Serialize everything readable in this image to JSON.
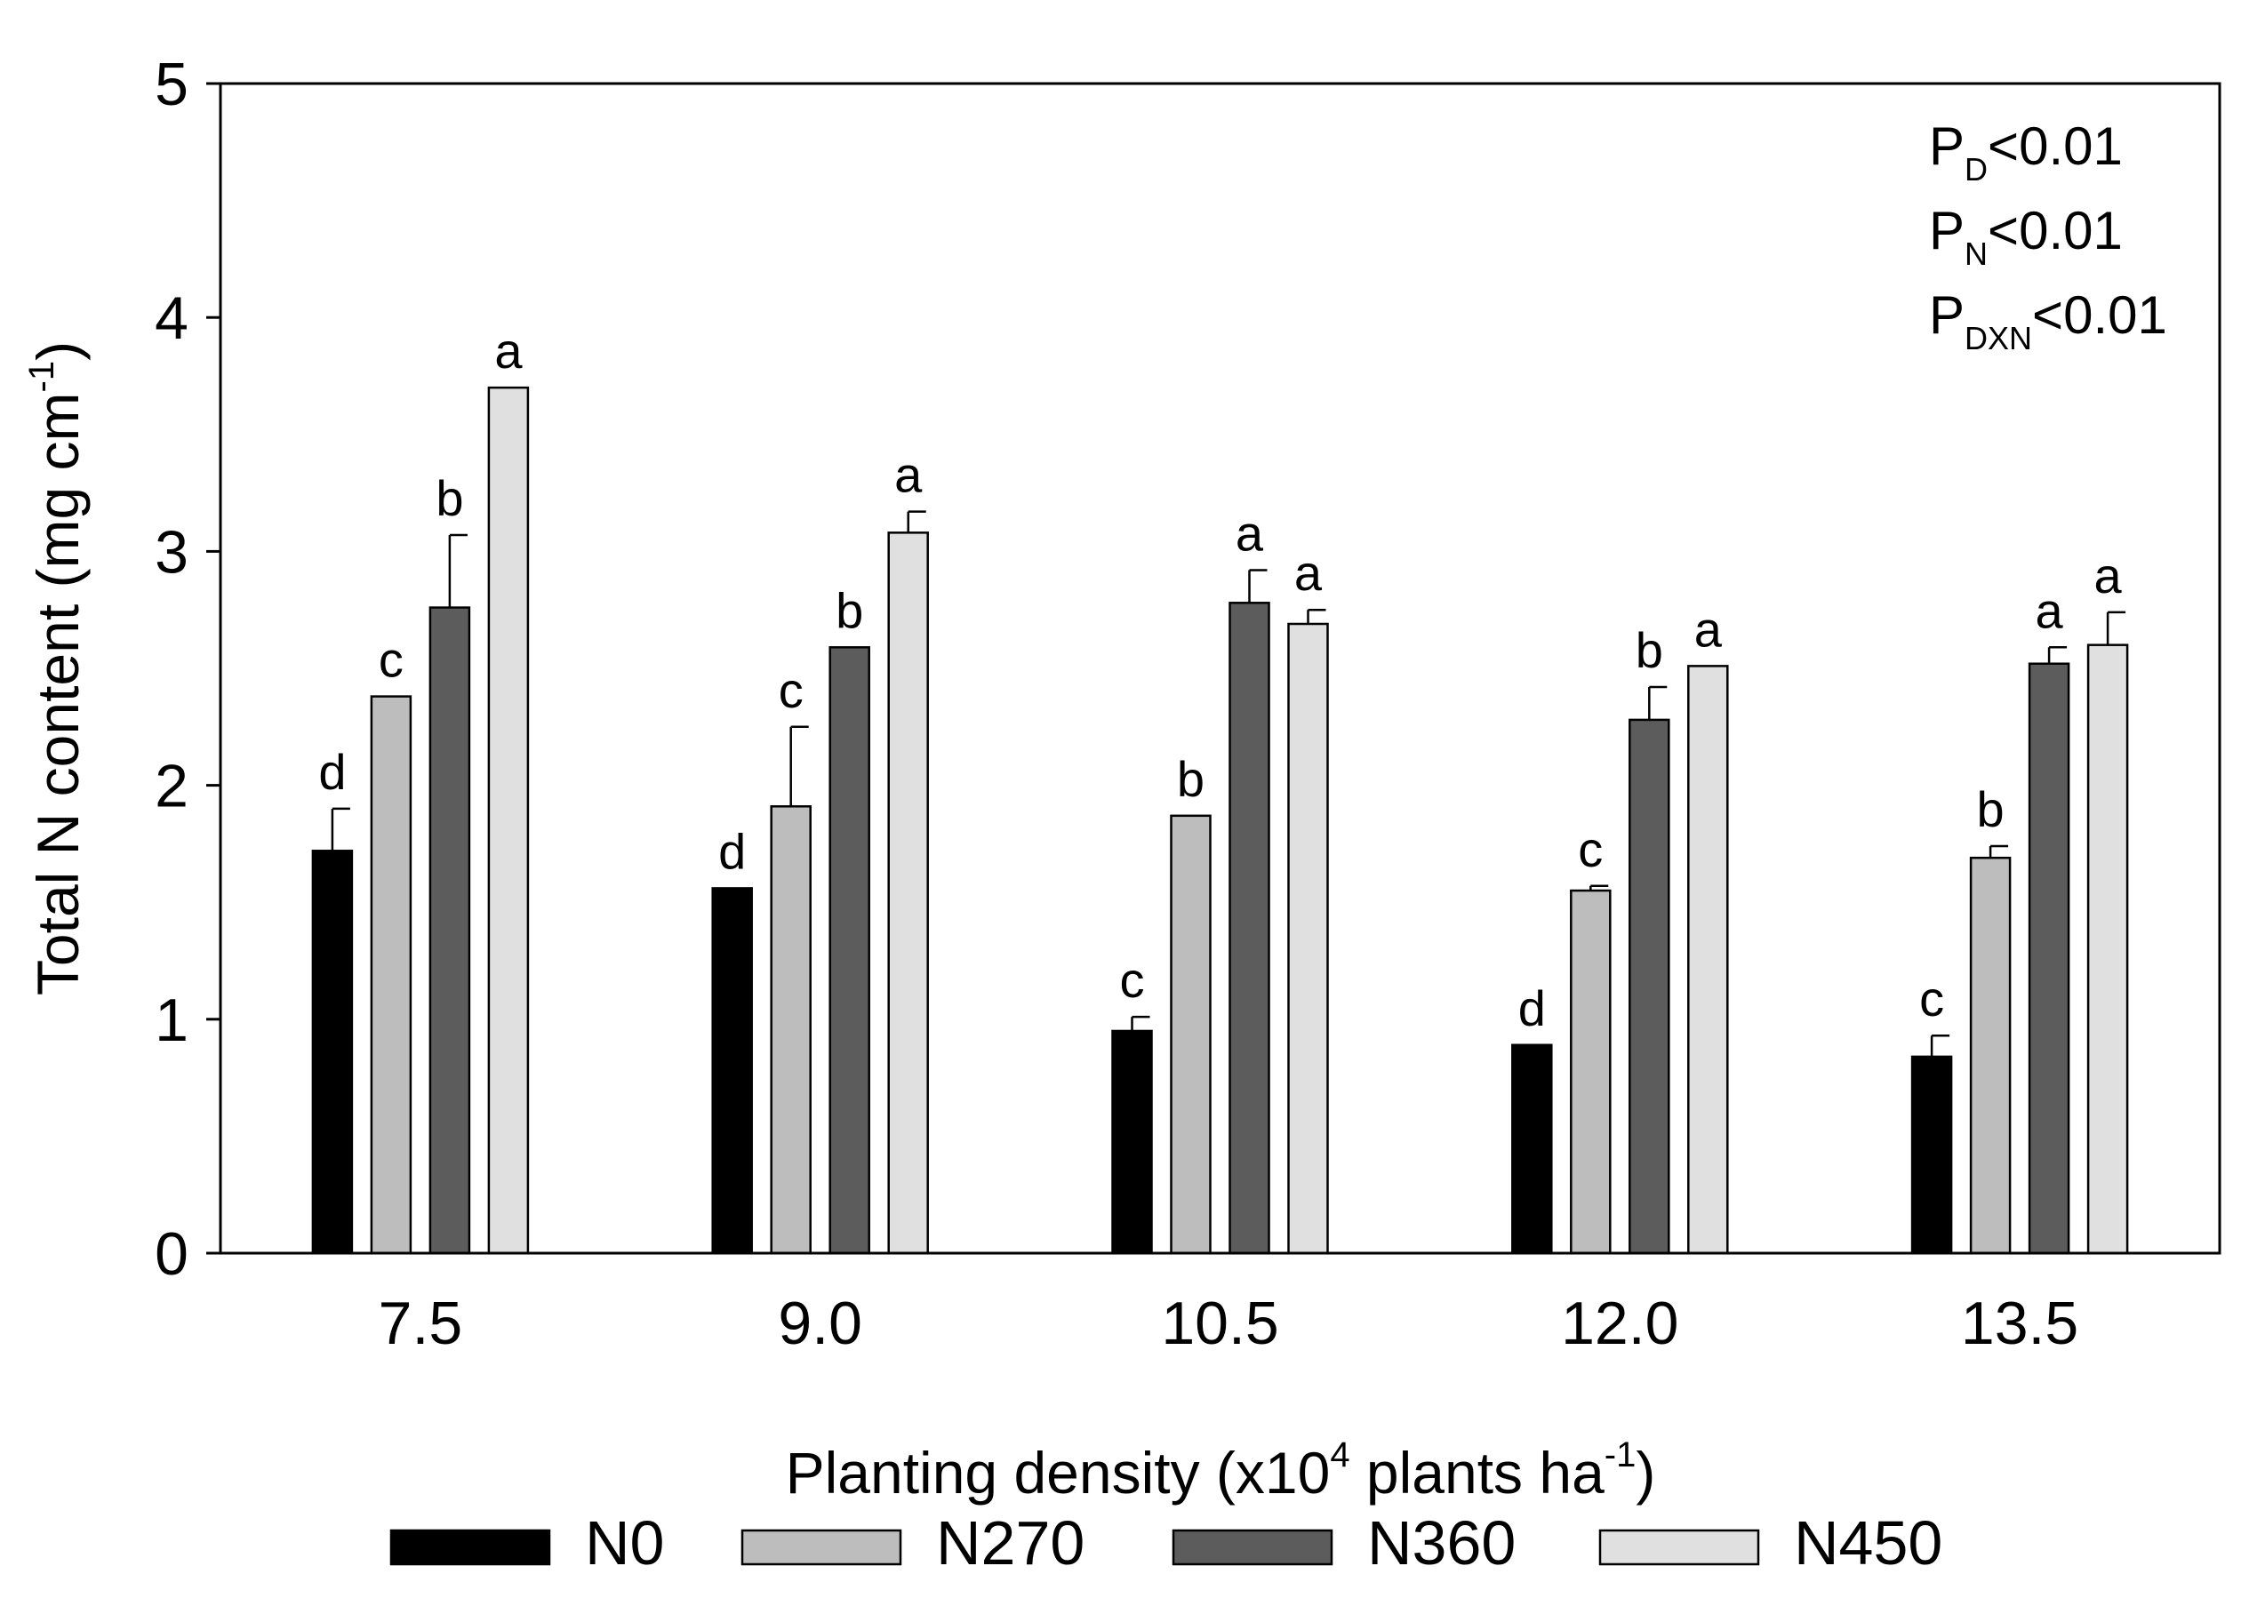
{
  "chart_data": {
    "type": "bar",
    "title": "",
    "xlabel": "Planting density (x10",
    "xlabel_sup": "4",
    "xlabel_rest": " plants ha",
    "xlabel_sup2": "-1",
    "xlabel_end": ")",
    "ylabel": "Total N content (mg cm",
    "ylabel_sup": "-1",
    "ylabel_end": ")",
    "ylim": [
      0,
      5
    ],
    "yticks": [
      "0",
      "1",
      "2",
      "3",
      "4",
      "5"
    ],
    "categories": [
      "7.5",
      "9.0",
      "10.5",
      "12.0",
      "13.5"
    ],
    "series": [
      {
        "name": "N0",
        "color": "#000000",
        "values": [
          1.72,
          1.56,
          0.95,
          0.89,
          0.84
        ],
        "errors": [
          0.18,
          0.0,
          0.06,
          0.0,
          0.09
        ],
        "letters": [
          "d",
          "d",
          "c",
          "d",
          "c"
        ]
      },
      {
        "name": "N270",
        "color": "#bdbdbd",
        "values": [
          2.38,
          1.91,
          1.87,
          1.55,
          1.69
        ],
        "errors": [
          0.0,
          0.34,
          0.0,
          0.02,
          0.05
        ],
        "letters": [
          "c",
          "c",
          "b",
          "c",
          "b"
        ]
      },
      {
        "name": "N360",
        "color": "#5c5c5c",
        "values": [
          2.76,
          2.59,
          2.78,
          2.28,
          2.52
        ],
        "errors": [
          0.31,
          0.0,
          0.14,
          0.14,
          0.07
        ],
        "letters": [
          "b",
          "b",
          "a",
          "b",
          "a"
        ]
      },
      {
        "name": "N450",
        "color": "#e0e0e0",
        "values": [
          3.7,
          3.08,
          2.69,
          2.51,
          2.6
        ],
        "errors": [
          0.0,
          0.09,
          0.06,
          0.0,
          0.14
        ],
        "letters": [
          "a",
          "a",
          "a",
          "a",
          "a"
        ]
      }
    ],
    "annotations": [
      {
        "base": "P",
        "sub": "D",
        "rest": "<0.01"
      },
      {
        "base": "P",
        "sub": "N",
        "rest": "<0.01"
      },
      {
        "base": "P",
        "sub": "DXN",
        "rest": "<0.01"
      }
    ],
    "legend_position": "bottom",
    "grid": false
  }
}
